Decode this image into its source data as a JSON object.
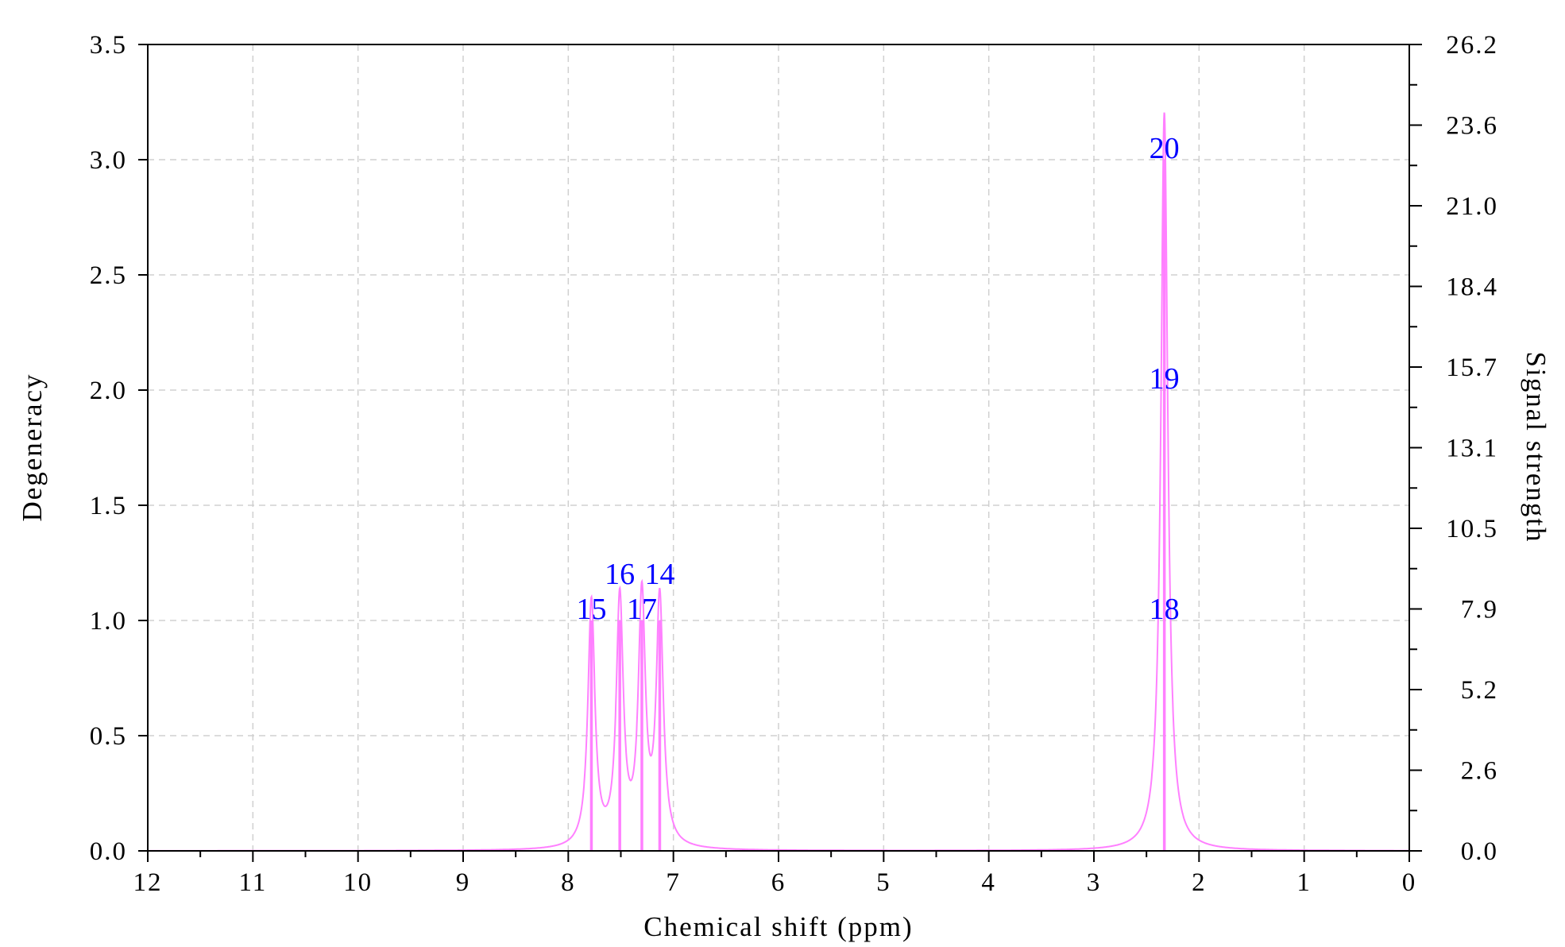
{
  "chart_data": {
    "type": "line",
    "xlabel": "Chemical shift (ppm)",
    "ylabel": "Degeneracy",
    "y2label": "Signal strength",
    "xlim": [
      12,
      0
    ],
    "ylim": [
      0,
      3.5
    ],
    "y2lim": [
      0,
      26.2
    ],
    "x_ticks": [
      "12",
      "11",
      "10",
      "9",
      "8",
      "7",
      "6",
      "5",
      "4",
      "3",
      "2",
      "1",
      "0"
    ],
    "y_ticks": [
      "0.0",
      "0.5",
      "1.0",
      "1.5",
      "2.0",
      "2.5",
      "3.0",
      "3.5"
    ],
    "y2_ticks": [
      "0.0",
      "2.6",
      "5.2",
      "7.9",
      "10.5",
      "13.1",
      "15.7",
      "18.4",
      "21.0",
      "23.6",
      "26.2"
    ],
    "grid": true,
    "x_reversed": true,
    "colors": {
      "spectrum": "#ff80ff",
      "sticks": "#ff80ff",
      "labels": "#0000ff",
      "grid": "#d0d0d0"
    },
    "sticks": [
      {
        "shift": 7.78,
        "degeneracy": 1
      },
      {
        "shift": 7.51,
        "degeneracy": 1
      },
      {
        "shift": 7.3,
        "degeneracy": 1
      },
      {
        "shift": 7.13,
        "degeneracy": 1
      },
      {
        "shift": 2.33,
        "degeneracy": 3
      }
    ],
    "atom_labels": [
      {
        "text": "15",
        "shift": 7.78,
        "level": 1
      },
      {
        "text": "16",
        "shift": 7.51,
        "level": 1
      },
      {
        "text": "17",
        "shift": 7.3,
        "level": 1
      },
      {
        "text": "14",
        "shift": 7.13,
        "level": 1
      },
      {
        "text": "18",
        "shift": 2.33,
        "level": 1
      },
      {
        "text": "19",
        "shift": 2.33,
        "level": 2
      },
      {
        "text": "20",
        "shift": 2.33,
        "level": 3
      }
    ],
    "lorentzian_halfwidth_ppm": 0.04,
    "signal_per_degeneracy": 8.0
  }
}
